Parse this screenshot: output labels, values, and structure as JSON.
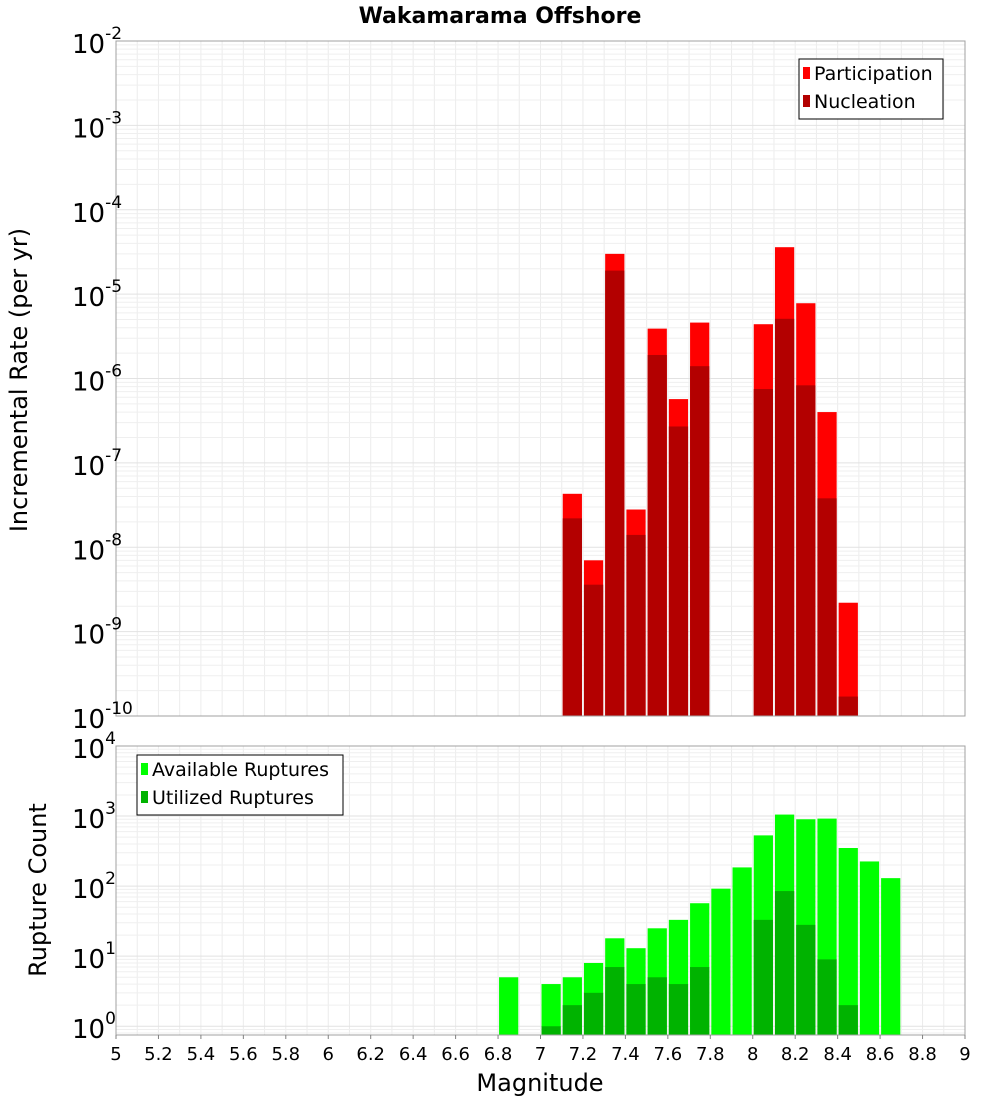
{
  "chart_data": [
    {
      "type": "bar",
      "title": "Wakamarama Offshore",
      "ylabel": "Incremental Rate (per yr)",
      "xlabel": "",
      "xlim": [
        5,
        9
      ],
      "ylim": [
        1e-10,
        0.01
      ],
      "yscale": "log",
      "grid": true,
      "legend_position": "top-right",
      "bin_width": 0.1,
      "colors": {
        "Participation": "#ff0000",
        "Nucleation": "#b30000"
      },
      "series": [
        {
          "name": "Participation",
          "x": [
            7.15,
            7.25,
            7.35,
            7.45,
            7.55,
            7.65,
            7.75,
            8.05,
            8.15,
            8.25,
            8.35,
            8.45
          ],
          "values": [
            4.3e-08,
            7e-09,
            3e-05,
            2.8e-08,
            3.9e-06,
            5.7e-07,
            4.6e-06,
            4.4e-06,
            3.6e-05,
            7.8e-06,
            4e-07,
            2.2e-09
          ]
        },
        {
          "name": "Nucleation",
          "x": [
            7.15,
            7.25,
            7.35,
            7.45,
            7.55,
            7.65,
            7.75,
            8.05,
            8.15,
            8.25,
            8.35,
            8.45
          ],
          "values": [
            2.2e-08,
            3.6e-09,
            1.9e-05,
            1.4e-08,
            1.9e-06,
            2.7e-07,
            1.4e-06,
            7.5e-07,
            5.1e-06,
            8.3e-07,
            3.8e-08,
            1.7e-10
          ]
        }
      ],
      "yticks": [
        {
          "base": "10",
          "exp": "-10"
        },
        {
          "base": "10",
          "exp": "-9"
        },
        {
          "base": "10",
          "exp": "-8"
        },
        {
          "base": "10",
          "exp": "-7"
        },
        {
          "base": "10",
          "exp": "-6"
        },
        {
          "base": "10",
          "exp": "-5"
        },
        {
          "base": "10",
          "exp": "-4"
        },
        {
          "base": "10",
          "exp": "-3"
        },
        {
          "base": "10",
          "exp": "-2"
        }
      ]
    },
    {
      "type": "bar",
      "title": "",
      "ylabel": "Rupture Count",
      "xlabel": "Magnitude",
      "xlim": [
        5,
        9
      ],
      "ylim": [
        0.75,
        10000
      ],
      "yscale": "log",
      "grid": true,
      "legend_position": "top-left",
      "bin_width": 0.1,
      "colors": {
        "Available Ruptures": "#00ff00",
        "Utilized Ruptures": "#00b300"
      },
      "series": [
        {
          "name": "Available Ruptures",
          "x": [
            6.85,
            7.05,
            7.15,
            7.25,
            7.35,
            7.45,
            7.55,
            7.65,
            7.75,
            7.85,
            7.95,
            8.05,
            8.15,
            8.25,
            8.35,
            8.45,
            8.55,
            8.65
          ],
          "values": [
            5,
            4,
            5,
            8,
            18,
            13,
            25,
            33,
            57,
            92,
            185,
            530,
            1050,
            900,
            920,
            350,
            225,
            130
          ]
        },
        {
          "name": "Utilized Ruptures",
          "x": [
            7.05,
            7.15,
            7.25,
            7.35,
            7.45,
            7.55,
            7.65,
            7.75,
            8.05,
            8.15,
            8.25,
            8.35,
            8.45
          ],
          "values": [
            1,
            2,
            3,
            7,
            4,
            5,
            4,
            7,
            33,
            85,
            28,
            9,
            2
          ]
        }
      ],
      "yticks": [
        {
          "base": "10",
          "exp": "0"
        },
        {
          "base": "10",
          "exp": "1"
        },
        {
          "base": "10",
          "exp": "2"
        },
        {
          "base": "10",
          "exp": "3"
        },
        {
          "base": "10",
          "exp": "4"
        }
      ],
      "xticks": [
        "5",
        "5.2",
        "5.4",
        "5.6",
        "5.8",
        "6",
        "6.2",
        "6.4",
        "6.6",
        "6.8",
        "7",
        "7.2",
        "7.4",
        "7.6",
        "7.8",
        "8",
        "8.2",
        "8.4",
        "8.6",
        "8.8",
        "9"
      ]
    }
  ]
}
